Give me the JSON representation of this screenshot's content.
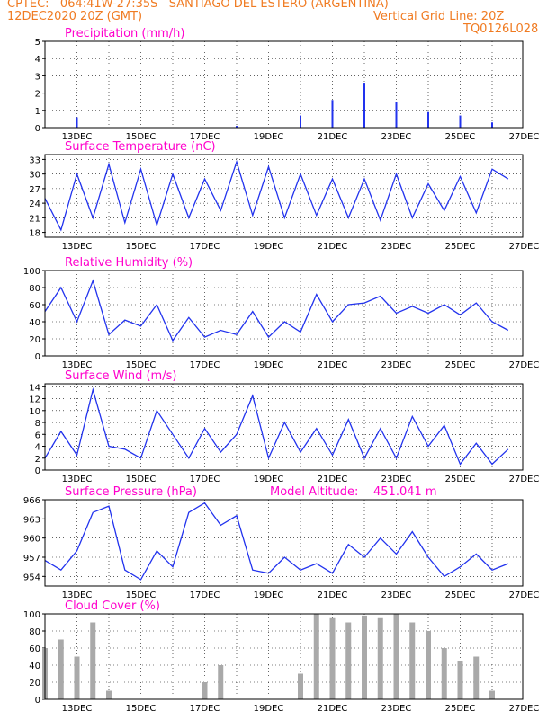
{
  "header": {
    "line1_left": "CPTEC:   064:41W-27:35S   SANTIAGO DEL ESTERO (ARGENTINA)",
    "line2_left": "12DEC2020 20Z (GMT)",
    "line2_right": "Vertical Grid Line: 20Z",
    "line3_right": "TQ0126L028"
  },
  "colors": {
    "header": "#f07b22",
    "title": "#ff00cc",
    "series": "#2233ee",
    "cloud": "#a9a9a9"
  },
  "x_tick_labels": [
    "13DEC",
    "15DEC",
    "17DEC",
    "19DEC",
    "21DEC",
    "23DEC",
    "25DEC",
    "27DEC"
  ],
  "chart_data": [
    {
      "type": "bar",
      "title": "Precipitation (mm/h)",
      "ylim": [
        0,
        5
      ],
      "yticks": [
        0,
        1,
        2,
        3,
        4,
        5
      ],
      "x": [
        "12DEC 20Z",
        "13DEC 20Z",
        "14DEC 20Z",
        "15DEC 20Z",
        "16DEC 20Z",
        "17DEC 20Z",
        "18DEC 20Z",
        "19DEC 20Z",
        "20DEC 20Z",
        "21DEC 20Z",
        "22DEC 20Z",
        "23DEC 20Z",
        "24DEC 20Z",
        "25DEC 20Z",
        "26DEC 20Z"
      ],
      "values": [
        0,
        0.6,
        0,
        0,
        0,
        0,
        0.1,
        0,
        0.7,
        1.6,
        2.6,
        1.5,
        0.9,
        0.7,
        0.3
      ]
    },
    {
      "type": "line",
      "title": "Surface Temperature (nC)",
      "ylim": [
        17,
        34
      ],
      "yticks": [
        18,
        21,
        24,
        27,
        30,
        33
      ],
      "x": [
        "12DEC 20Z",
        "13DEC 08Z",
        "13DEC 20Z",
        "14DEC 08Z",
        "14DEC 20Z",
        "15DEC 08Z",
        "15DEC 20Z",
        "16DEC 08Z",
        "16DEC 20Z",
        "17DEC 08Z",
        "17DEC 20Z",
        "18DEC 08Z",
        "18DEC 20Z",
        "19DEC 08Z",
        "19DEC 20Z",
        "20DEC 08Z",
        "20DEC 20Z",
        "21DEC 08Z",
        "21DEC 20Z",
        "22DEC 08Z",
        "22DEC 20Z",
        "23DEC 08Z",
        "23DEC 20Z",
        "24DEC 08Z",
        "24DEC 20Z",
        "25DEC 08Z",
        "25DEC 20Z",
        "26DEC 08Z",
        "26DEC 20Z",
        "27DEC 08Z"
      ],
      "values": [
        25,
        18.5,
        30,
        21,
        32,
        20,
        31,
        19.5,
        30,
        21,
        29,
        22.5,
        32.5,
        21.5,
        31.5,
        21,
        30,
        21.5,
        29,
        21,
        29,
        20.5,
        30,
        21,
        28,
        22.5,
        29.5,
        22,
        31,
        29
      ]
    },
    {
      "type": "line",
      "title": "Relative Humidity (%)",
      "ylim": [
        0,
        100
      ],
      "yticks": [
        0,
        20,
        40,
        60,
        80,
        100
      ],
      "x": [
        "12DEC 20Z",
        "13DEC 08Z",
        "13DEC 20Z",
        "14DEC 08Z",
        "14DEC 20Z",
        "15DEC 08Z",
        "15DEC 20Z",
        "16DEC 08Z",
        "16DEC 20Z",
        "17DEC 08Z",
        "17DEC 20Z",
        "18DEC 08Z",
        "18DEC 20Z",
        "19DEC 08Z",
        "19DEC 20Z",
        "20DEC 08Z",
        "20DEC 20Z",
        "21DEC 08Z",
        "21DEC 20Z",
        "22DEC 08Z",
        "22DEC 20Z",
        "23DEC 08Z",
        "23DEC 20Z",
        "24DEC 08Z",
        "24DEC 20Z",
        "25DEC 08Z",
        "25DEC 20Z",
        "26DEC 08Z",
        "26DEC 20Z",
        "27DEC 08Z"
      ],
      "values": [
        52,
        80,
        40,
        88,
        25,
        42,
        35,
        60,
        18,
        45,
        22,
        30,
        25,
        52,
        22,
        40,
        28,
        72,
        40,
        60,
        62,
        70,
        50,
        58,
        50,
        60,
        48,
        62,
        40,
        30
      ]
    },
    {
      "type": "line",
      "title": "Surface Wind (m/s)",
      "ylim": [
        0,
        14.5
      ],
      "yticks": [
        0,
        2,
        4,
        6,
        8,
        10,
        12,
        14
      ],
      "x": [
        "12DEC 20Z",
        "13DEC 08Z",
        "13DEC 20Z",
        "14DEC 08Z",
        "14DEC 20Z",
        "15DEC 08Z",
        "15DEC 20Z",
        "16DEC 08Z",
        "16DEC 20Z",
        "17DEC 08Z",
        "17DEC 20Z",
        "18DEC 08Z",
        "18DEC 20Z",
        "19DEC 08Z",
        "19DEC 20Z",
        "20DEC 08Z",
        "20DEC 20Z",
        "21DEC 08Z",
        "21DEC 20Z",
        "22DEC 08Z",
        "22DEC 20Z",
        "23DEC 08Z",
        "23DEC 20Z",
        "24DEC 08Z",
        "24DEC 20Z",
        "25DEC 08Z",
        "25DEC 20Z",
        "26DEC 08Z",
        "26DEC 20Z",
        "27DEC 08Z"
      ],
      "values": [
        2,
        6.5,
        2.5,
        13.5,
        4,
        3.5,
        2,
        10,
        6,
        2,
        7,
        3,
        6,
        12.5,
        2,
        8,
        3,
        7,
        2.5,
        8.5,
        2,
        7,
        2,
        9,
        4,
        7.5,
        1,
        4.5,
        1,
        3.5
      ]
    },
    {
      "type": "line",
      "title": "Surface Pressure (hPa)",
      "annotation_label": "Model Altitude:",
      "annotation_value": "451.041 m",
      "ylim": [
        952.5,
        966
      ],
      "yticks": [
        954,
        957,
        960,
        963,
        966
      ],
      "x": [
        "12DEC 20Z",
        "13DEC 08Z",
        "13DEC 20Z",
        "14DEC 08Z",
        "14DEC 20Z",
        "15DEC 08Z",
        "15DEC 20Z",
        "16DEC 08Z",
        "16DEC 20Z",
        "17DEC 08Z",
        "17DEC 20Z",
        "18DEC 08Z",
        "18DEC 20Z",
        "19DEC 08Z",
        "19DEC 20Z",
        "20DEC 08Z",
        "20DEC 20Z",
        "21DEC 08Z",
        "21DEC 20Z",
        "22DEC 08Z",
        "22DEC 20Z",
        "23DEC 08Z",
        "23DEC 20Z",
        "24DEC 08Z",
        "24DEC 20Z",
        "25DEC 08Z",
        "25DEC 20Z",
        "26DEC 08Z",
        "26DEC 20Z",
        "27DEC 08Z"
      ],
      "values": [
        956.5,
        955,
        958,
        964,
        965,
        955,
        953.5,
        958,
        955.5,
        964,
        965.5,
        962,
        963.5,
        955,
        954.5,
        957,
        955,
        956,
        954.5,
        959,
        957,
        960,
        957.5,
        961,
        957,
        954,
        955.5,
        957.5,
        955,
        956
      ]
    },
    {
      "type": "bar",
      "title": "Cloud Cover (%)",
      "ylim": [
        0,
        100
      ],
      "yticks": [
        0,
        20,
        40,
        60,
        80,
        100
      ],
      "x": [
        "12DEC 20Z",
        "13DEC 08Z",
        "13DEC 20Z",
        "14DEC 08Z",
        "14DEC 20Z",
        "15DEC 08Z",
        "15DEC 20Z",
        "16DEC 08Z",
        "16DEC 20Z",
        "17DEC 08Z",
        "17DEC 20Z",
        "18DEC 08Z",
        "18DEC 20Z",
        "19DEC 08Z",
        "19DEC 20Z",
        "20DEC 08Z",
        "20DEC 20Z",
        "21DEC 08Z",
        "21DEC 20Z",
        "22DEC 08Z",
        "22DEC 20Z",
        "23DEC 08Z",
        "23DEC 20Z",
        "24DEC 08Z",
        "24DEC 20Z",
        "25DEC 08Z",
        "25DEC 20Z",
        "26DEC 08Z",
        "26DEC 20Z",
        "27DEC 08Z"
      ],
      "values": [
        60,
        70,
        50,
        90,
        10,
        0,
        0,
        0,
        0,
        0,
        20,
        40,
        0,
        0,
        0,
        0,
        30,
        100,
        95,
        90,
        98,
        95,
        100,
        90,
        80,
        60,
        45,
        50,
        10,
        0
      ]
    }
  ]
}
